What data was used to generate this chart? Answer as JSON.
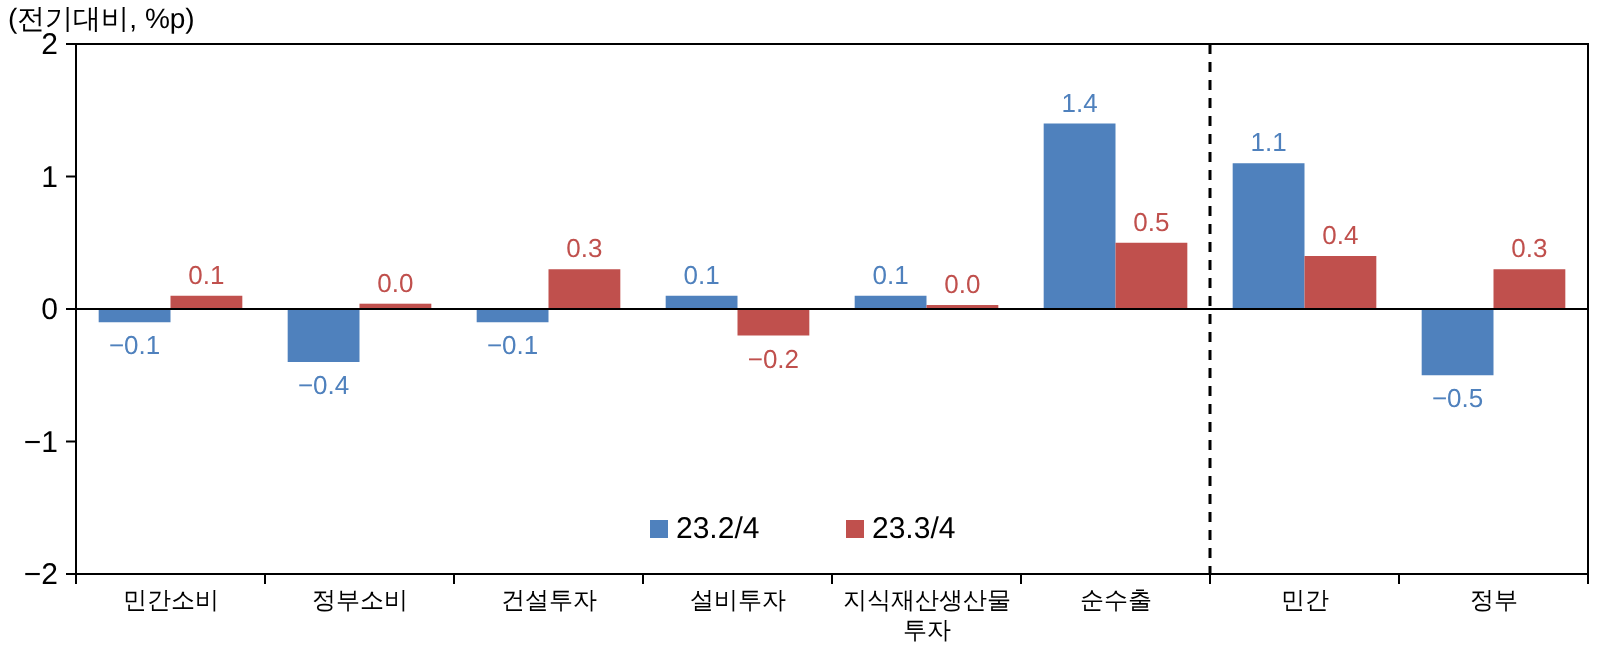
{
  "chart_data": {
    "type": "bar",
    "ylabel": "(전기대비, %p)",
    "categories": [
      "민간소비",
      "정부소비",
      "건설투자",
      "설비투자",
      "지식재산생산물 투자",
      "순수출",
      "민간",
      "정부"
    ],
    "series": [
      {
        "name": "23.2/4",
        "color": "#4f81bd",
        "values": [
          -0.1,
          -0.4,
          -0.1,
          0.1,
          0.1,
          1.4,
          1.1,
          -0.5
        ],
        "value_labels": [
          "−0.1",
          "−0.4",
          "−0.1",
          "0.1",
          "0.1",
          "1.4",
          "1.1",
          "−0.5"
        ]
      },
      {
        "name": "23.3/4",
        "color": "#c0504d",
        "values": [
          0.1,
          0.04,
          0.3,
          -0.2,
          0.03,
          0.5,
          0.4,
          0.3
        ],
        "value_labels": [
          "0.1",
          "0.0",
          "0.3",
          "−0.2",
          "0.0",
          "0.5",
          "0.4",
          "0.3"
        ]
      }
    ],
    "ylim": [
      -2,
      2
    ],
    "yticks": [
      {
        "value": -2,
        "label": "−2"
      },
      {
        "value": -1,
        "label": "−1"
      },
      0,
      1,
      2
    ],
    "legend": "bottom"
  }
}
